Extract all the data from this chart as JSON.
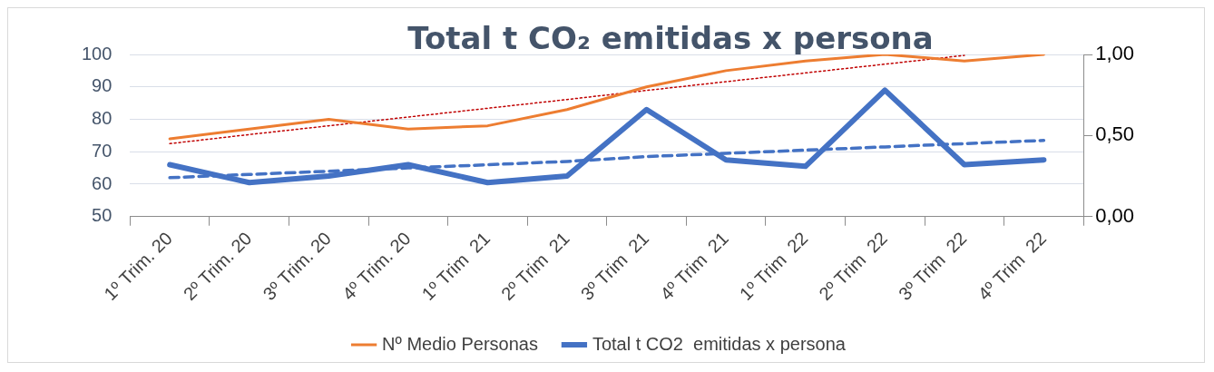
{
  "chart_data": {
    "type": "line",
    "title": "Total t CO₂  emitidas x persona",
    "categories": [
      "1º Trim. 20",
      "2º Trim. 20",
      "3º Trim. 20",
      "4º Trim. 20",
      "1º Trim  21",
      "2º Trim  21",
      "3º Trim  21",
      "4º Trim  21",
      "1º Trim  22",
      "2º Trim  22",
      "3º Trim  22",
      "4º Trim  22"
    ],
    "series": [
      {
        "name": "Nº Medio Personas",
        "color": "#ed7d31",
        "values": [
          74,
          77,
          80,
          77,
          78,
          83,
          90,
          95,
          98,
          100,
          98,
          100
        ]
      },
      {
        "name": "Total t CO2  emitidas x persona",
        "color": "#4472c4",
        "axis": "y2",
        "values": [
          0.32,
          0.21,
          0.25,
          0.32,
          0.21,
          0.25,
          0.66,
          0.35,
          0.31,
          0.78,
          0.32,
          0.35
        ]
      },
      {
        "color": "#c00000",
        "line_style": "dotted",
        "values": [
          72.5,
          75.3,
          78.0,
          80.7,
          83.4,
          86.1,
          88.9,
          91.6,
          94.3,
          97.0,
          99.7,
          null
        ]
      },
      {
        "color": "#4472c4",
        "axis": "y2",
        "line_style": "dashed",
        "values": [
          0.24,
          0.26,
          0.28,
          0.3,
          0.32,
          0.34,
          0.37,
          0.39,
          0.41,
          0.43,
          0.45,
          0.47
        ]
      }
    ],
    "ylim": [
      50,
      100
    ],
    "yticks": [
      50,
      60,
      70,
      80,
      90,
      100
    ],
    "y2lim": [
      0,
      1
    ],
    "y2ticks": [
      {
        "value": 0,
        "label": "0,00"
      },
      {
        "value": 0.5,
        "label": "0,50"
      },
      {
        "value": 1,
        "label": "1,00"
      }
    ],
    "grid": "y",
    "legend": "bottom",
    "marker": "none"
  }
}
